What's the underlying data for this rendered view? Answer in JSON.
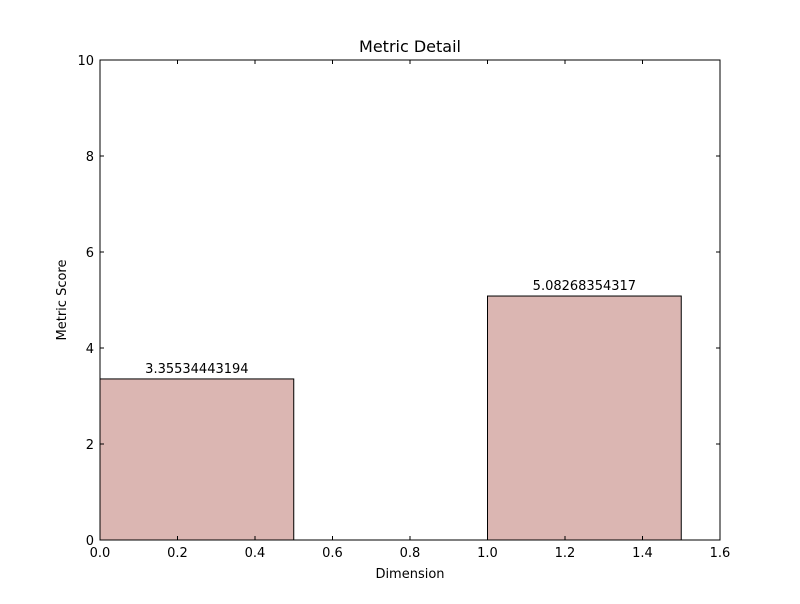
{
  "chart_data": {
    "type": "bar",
    "title": "Metric Detail",
    "xlabel": "Dimension",
    "ylabel": "Metric Score",
    "xlim": [
      0.0,
      1.6
    ],
    "ylim": [
      0,
      10
    ],
    "xticks": [
      0.0,
      0.2,
      0.4,
      0.6,
      0.8,
      1.0,
      1.2,
      1.4,
      1.6
    ],
    "xtick_labels": [
      "0.0",
      "0.2",
      "0.4",
      "0.6",
      "0.8",
      "1.0",
      "1.2",
      "1.4",
      "1.6"
    ],
    "yticks": [
      0,
      2,
      4,
      6,
      8,
      10
    ],
    "ytick_labels": [
      "0",
      "2",
      "4",
      "6",
      "8",
      "10"
    ],
    "grid": false,
    "bars": [
      {
        "x_start": 0.0,
        "x_end": 0.5,
        "value": 3.35534443194,
        "label": "3.35534443194"
      },
      {
        "x_start": 1.0,
        "x_end": 1.5,
        "value": 5.08268354317,
        "label": "5.08268354317"
      }
    ],
    "colors": {
      "bar_fill": "#dbb6b2",
      "bar_edge": "#000000",
      "axes": "#000000",
      "background": "#ffffff"
    }
  }
}
